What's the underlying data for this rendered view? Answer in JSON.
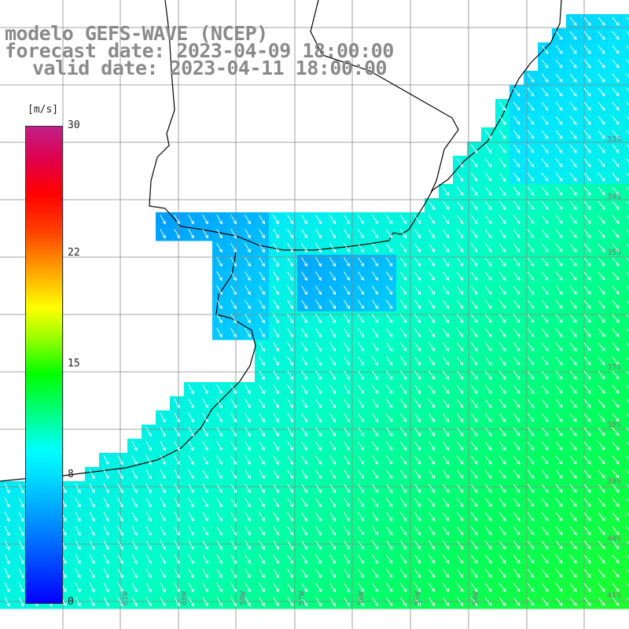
{
  "title": {
    "line1": "modelo GEFS-WAVE (NCEP)",
    "line2": "forecast date: 2023-04-09 18:00:00",
    "line3": "valid date: 2023-04-11 18:00:00"
  },
  "colorbar": {
    "unit": "[m/s]",
    "ticks": [
      "30",
      "22",
      "15",
      "8",
      "0"
    ],
    "tick_values": [
      30,
      22,
      15,
      8,
      0
    ],
    "colors": [
      "#0000ff",
      "#00ffff",
      "#00ff00",
      "#ffff00",
      "#ff0000",
      "#c0208a"
    ]
  },
  "latitude_labels": [
    "33S",
    "34S",
    "35S",
    "37S",
    "38S",
    "39S",
    "40S",
    "41S"
  ],
  "longitude_labels": [
    "61W",
    "60W",
    "59W",
    "57W",
    "56W",
    "55W",
    "54W"
  ],
  "map": {
    "field": "wind speed and direction",
    "land_color": "#ffffff",
    "coastline_color": "#000000",
    "grid_color": "#888888",
    "arrow_color": "#ffffff",
    "arrow_direction": "toward south-east"
  }
}
